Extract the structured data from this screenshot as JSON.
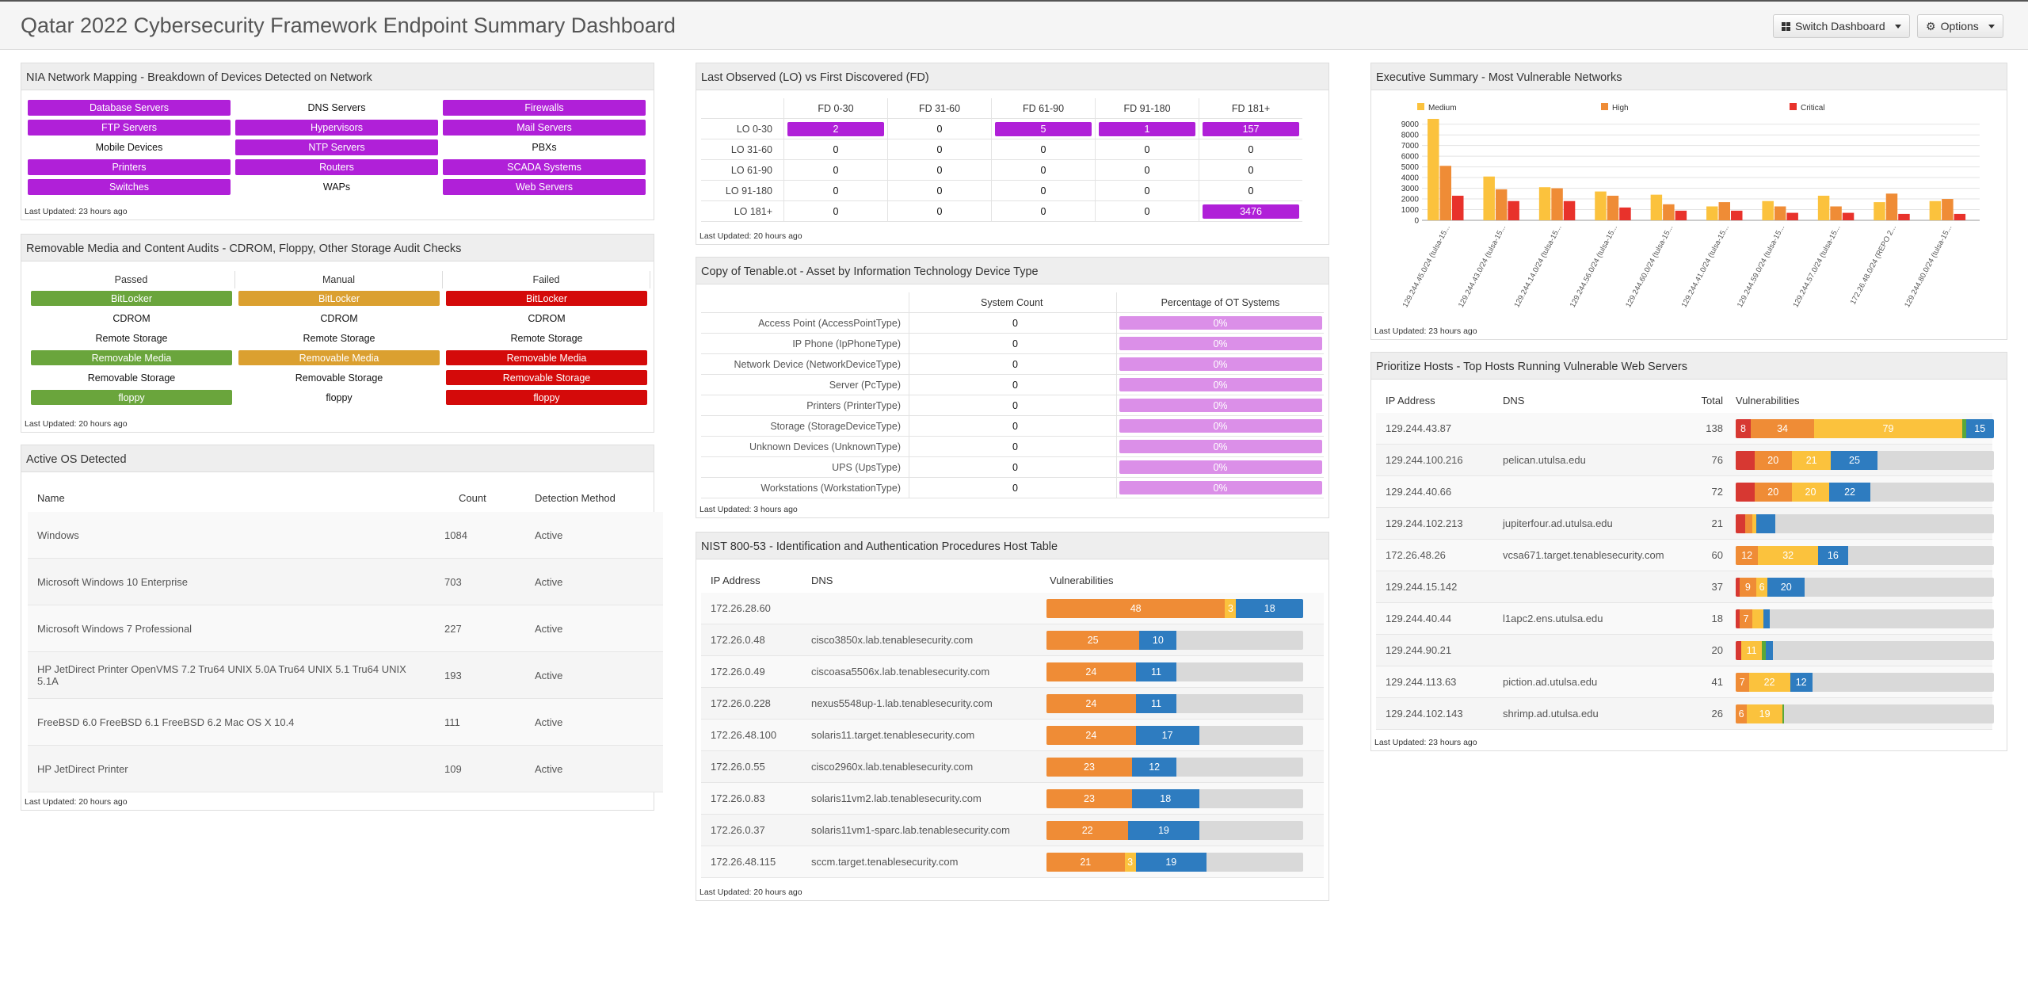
{
  "header": {
    "title": "Qatar 2022 Cybersecurity Framework Endpoint Summary Dashboard",
    "switch_label": "Switch Dashboard",
    "options_label": "Options"
  },
  "nia": {
    "title": "NIA Network Mapping - Breakdown of Devices Detected on Network",
    "cells": [
      {
        "label": "Database Servers",
        "style": "purple"
      },
      {
        "label": "DNS Servers",
        "style": "plain"
      },
      {
        "label": "Firewalls",
        "style": "purple"
      },
      {
        "label": "FTP Servers",
        "style": "purple"
      },
      {
        "label": "Hypervisors",
        "style": "purple"
      },
      {
        "label": "Mail Servers",
        "style": "purple"
      },
      {
        "label": "Mobile Devices",
        "style": "plain"
      },
      {
        "label": "NTP Servers",
        "style": "purple"
      },
      {
        "label": "PBXs",
        "style": "plain"
      },
      {
        "label": "Printers",
        "style": "purple"
      },
      {
        "label": "Routers",
        "style": "purple"
      },
      {
        "label": "SCADA Systems",
        "style": "purple"
      },
      {
        "label": "Switches",
        "style": "purple"
      },
      {
        "label": "WAPs",
        "style": "plain"
      },
      {
        "label": "Web Servers",
        "style": "purple"
      }
    ],
    "updated": "Last Updated: 23 hours ago"
  },
  "removable": {
    "title": "Removable Media and Content Audits - CDROM, Floppy, Other Storage Audit Checks",
    "headers": [
      "Passed",
      "Manual",
      "Failed"
    ],
    "rows": [
      [
        {
          "label": "BitLocker",
          "style": "green"
        },
        {
          "label": "BitLocker",
          "style": "orange"
        },
        {
          "label": "BitLocker",
          "style": "red"
        }
      ],
      [
        {
          "label": "CDROM",
          "style": "plain"
        },
        {
          "label": "CDROM",
          "style": "plain"
        },
        {
          "label": "CDROM",
          "style": "plain"
        }
      ],
      [
        {
          "label": "Remote Storage",
          "style": "plain"
        },
        {
          "label": "Remote Storage",
          "style": "plain"
        },
        {
          "label": "Remote Storage",
          "style": "plain"
        }
      ],
      [
        {
          "label": "Removable Media",
          "style": "green"
        },
        {
          "label": "Removable Media",
          "style": "orange"
        },
        {
          "label": "Removable Media",
          "style": "red"
        }
      ],
      [
        {
          "label": "Removable Storage",
          "style": "plain"
        },
        {
          "label": "Removable Storage",
          "style": "plain"
        },
        {
          "label": "Removable Storage",
          "style": "red"
        }
      ],
      [
        {
          "label": "floppy",
          "style": "green"
        },
        {
          "label": "floppy",
          "style": "plain"
        },
        {
          "label": "floppy",
          "style": "red"
        }
      ]
    ],
    "updated": "Last Updated: 20 hours ago"
  },
  "os": {
    "title": "Active OS Detected",
    "headers": {
      "name": "Name",
      "count": "Count",
      "method": "Detection Method"
    },
    "rows": [
      {
        "name": "Windows",
        "count": "1084",
        "method": "Active"
      },
      {
        "name": "Microsoft Windows 10 Enterprise",
        "count": "703",
        "method": "Active"
      },
      {
        "name": "Microsoft Windows 7 Professional",
        "count": "227",
        "method": "Active"
      },
      {
        "name": "HP JetDirect Printer OpenVMS 7.2 Tru64 UNIX 5.0A Tru64 UNIX 5.1 Tru64 UNIX 5.1A",
        "count": "193",
        "method": "Active"
      },
      {
        "name": "FreeBSD 6.0 FreeBSD 6.1 FreeBSD 6.2 Mac OS X 10.4",
        "count": "111",
        "method": "Active"
      },
      {
        "name": "HP JetDirect Printer",
        "count": "109",
        "method": "Active"
      }
    ],
    "updated": "Last Updated: 20 hours ago"
  },
  "lofd": {
    "title": "Last Observed (LO) vs First Discovered (FD)",
    "columns": [
      "FD 0-30",
      "FD 31-60",
      "FD 61-90",
      "FD 91-180",
      "FD 181+"
    ],
    "rows": [
      {
        "label": "LO 0-30",
        "cells": [
          {
            "v": "2",
            "hl": true
          },
          {
            "v": "0",
            "hl": false
          },
          {
            "v": "5",
            "hl": true
          },
          {
            "v": "1",
            "hl": true
          },
          {
            "v": "157",
            "hl": true
          }
        ]
      },
      {
        "label": "LO 31-60",
        "cells": [
          {
            "v": "0",
            "hl": false
          },
          {
            "v": "0",
            "hl": false
          },
          {
            "v": "0",
            "hl": false
          },
          {
            "v": "0",
            "hl": false
          },
          {
            "v": "0",
            "hl": false
          }
        ]
      },
      {
        "label": "LO 61-90",
        "cells": [
          {
            "v": "0",
            "hl": false
          },
          {
            "v": "0",
            "hl": false
          },
          {
            "v": "0",
            "hl": false
          },
          {
            "v": "0",
            "hl": false
          },
          {
            "v": "0",
            "hl": false
          }
        ]
      },
      {
        "label": "LO 91-180",
        "cells": [
          {
            "v": "0",
            "hl": false
          },
          {
            "v": "0",
            "hl": false
          },
          {
            "v": "0",
            "hl": false
          },
          {
            "v": "0",
            "hl": false
          },
          {
            "v": "0",
            "hl": false
          }
        ]
      },
      {
        "label": "LO 181+",
        "cells": [
          {
            "v": "0",
            "hl": false
          },
          {
            "v": "0",
            "hl": false
          },
          {
            "v": "0",
            "hl": false
          },
          {
            "v": "0",
            "hl": false
          },
          {
            "v": "3476",
            "hl": true
          }
        ]
      }
    ],
    "updated": "Last Updated: 20 hours ago"
  },
  "ot": {
    "title": "Copy of Tenable.ot - Asset by Information Technology Device Type",
    "headers": {
      "count": "System Count",
      "pct": "Percentage of OT Systems"
    },
    "rows": [
      {
        "label": "Access Point (AccessPointType)",
        "count": "0",
        "pct": "0%"
      },
      {
        "label": "IP Phone (IpPhoneType)",
        "count": "0",
        "pct": "0%"
      },
      {
        "label": "Network Device (NetworkDeviceType)",
        "count": "0",
        "pct": "0%"
      },
      {
        "label": "Server (PcType)",
        "count": "0",
        "pct": "0%"
      },
      {
        "label": "Printers (PrinterType)",
        "count": "0",
        "pct": "0%"
      },
      {
        "label": "Storage (StorageDeviceType)",
        "count": "0",
        "pct": "0%"
      },
      {
        "label": "Unknown Devices (UnknownType)",
        "count": "0",
        "pct": "0%"
      },
      {
        "label": "UPS (UpsType)",
        "count": "0",
        "pct": "0%"
      },
      {
        "label": "Workstations (WorkstationType)",
        "count": "0",
        "pct": "0%"
      }
    ],
    "updated": "Last Updated: 3 hours ago"
  },
  "nist": {
    "title": "NIST 800-53 - Identification and Authentication Procedures Host Table",
    "headers": {
      "ip": "IP Address",
      "dns": "DNS",
      "vulns": "Vulnerabilities"
    },
    "bar_max": 69,
    "rows": [
      {
        "ip": "172.26.28.60",
        "dns": "",
        "segs": [
          {
            "c": "high",
            "v": 48,
            "t": "48"
          },
          {
            "c": "med",
            "v": 3,
            "t": "3"
          },
          {
            "c": "low",
            "v": 18,
            "t": "18"
          }
        ]
      },
      {
        "ip": "172.26.0.48",
        "dns": "cisco3850x.lab.tenablesecurity.com",
        "segs": [
          {
            "c": "high",
            "v": 25,
            "t": "25"
          },
          {
            "c": "low",
            "v": 10,
            "t": "10"
          }
        ]
      },
      {
        "ip": "172.26.0.49",
        "dns": "ciscoasa5506x.lab.tenablesecurity.com",
        "segs": [
          {
            "c": "high",
            "v": 24,
            "t": "24"
          },
          {
            "c": "low",
            "v": 11,
            "t": "11"
          }
        ]
      },
      {
        "ip": "172.26.0.228",
        "dns": "nexus5548up-1.lab.tenablesecurity.com",
        "segs": [
          {
            "c": "high",
            "v": 24,
            "t": "24"
          },
          {
            "c": "low",
            "v": 11,
            "t": "11"
          }
        ]
      },
      {
        "ip": "172.26.48.100",
        "dns": "solaris11.target.tenablesecurity.com",
        "segs": [
          {
            "c": "high",
            "v": 24,
            "t": "24"
          },
          {
            "c": "low",
            "v": 17,
            "t": "17"
          }
        ]
      },
      {
        "ip": "172.26.0.55",
        "dns": "cisco2960x.lab.tenablesecurity.com",
        "segs": [
          {
            "c": "high",
            "v": 23,
            "t": "23"
          },
          {
            "c": "low",
            "v": 12,
            "t": "12"
          }
        ]
      },
      {
        "ip": "172.26.0.83",
        "dns": "solaris11vm2.lab.tenablesecurity.com",
        "segs": [
          {
            "c": "high",
            "v": 23,
            "t": "23"
          },
          {
            "c": "low",
            "v": 18,
            "t": "18"
          }
        ]
      },
      {
        "ip": "172.26.0.37",
        "dns": "solaris11vm1-sparc.lab.tenablesecurity.com",
        "segs": [
          {
            "c": "high",
            "v": 22,
            "t": "22"
          },
          {
            "c": "low",
            "v": 19,
            "t": "19"
          }
        ]
      },
      {
        "ip": "172.26.48.115",
        "dns": "sccm.target.tenablesecurity.com",
        "segs": [
          {
            "c": "high",
            "v": 21,
            "t": "21"
          },
          {
            "c": "med",
            "v": 3,
            "t": "3"
          },
          {
            "c": "low",
            "v": 19,
            "t": "19"
          }
        ]
      }
    ],
    "updated": "Last Updated: 20 hours ago"
  },
  "exec": {
    "title": "Executive Summary - Most Vulnerable Networks",
    "updated": "Last Updated: 23 hours ago"
  },
  "chart_data": {
    "type": "bar",
    "categories": [
      "129.244.45.0/24 (tulsa-15...",
      "129.244.43.0/24 (tulsa-15...",
      "129.244.14.0/24 (tulsa-15...",
      "129.244.56.0/24 (tulsa-15...",
      "129.244.60.0/24 (tulsa-15...",
      "129.244.41.0/24 (tulsa-15...",
      "129.244.59.0/24 (tulsa-15...",
      "129.244.57.0/24 (tulsa-15...",
      "172.26.48.0/24 (REPO 2...",
      "129.244.80.0/24 (tulsa-15..."
    ],
    "series": [
      {
        "name": "Medium",
        "color": "#fbc23d",
        "values": [
          9500,
          4100,
          3100,
          2700,
          2400,
          1300,
          1800,
          2300,
          1700,
          1800
        ]
      },
      {
        "name": "High",
        "color": "#ef8c36",
        "values": [
          5100,
          2900,
          3000,
          2300,
          1500,
          1700,
          1300,
          1300,
          2500,
          2000
        ]
      },
      {
        "name": "Critical",
        "color": "#e8322b",
        "values": [
          2300,
          1800,
          1800,
          1200,
          900,
          900,
          700,
          700,
          600,
          600
        ]
      }
    ],
    "yticks": [
      0,
      1000,
      2000,
      3000,
      4000,
      5000,
      6000,
      7000,
      8000,
      9000
    ],
    "ylim": [
      0,
      9500
    ],
    "legend": "top"
  },
  "prio": {
    "title": "Prioritize Hosts - Top Hosts Running Vulnerable Web Servers",
    "headers": {
      "ip": "IP Address",
      "dns": "DNS",
      "total": "Total",
      "vulns": "Vulnerabilities"
    },
    "bar_max": 138,
    "rows": [
      {
        "ip": "129.244.43.87",
        "dns": "",
        "total": "138",
        "segs": [
          {
            "c": "crit",
            "v": 8,
            "t": "8"
          },
          {
            "c": "high",
            "v": 34,
            "t": "34"
          },
          {
            "c": "med",
            "v": 79,
            "t": "79"
          },
          {
            "c": "green",
            "v": 2,
            "t": ""
          },
          {
            "c": "low",
            "v": 15,
            "t": "15"
          }
        ]
      },
      {
        "ip": "129.244.100.216",
        "dns": "pelican.utulsa.edu",
        "total": "76",
        "segs": [
          {
            "c": "crit",
            "v": 10,
            "t": ""
          },
          {
            "c": "high",
            "v": 20,
            "t": "20"
          },
          {
            "c": "med",
            "v": 21,
            "t": "21"
          },
          {
            "c": "low",
            "v": 25,
            "t": "25"
          }
        ]
      },
      {
        "ip": "129.244.40.66",
        "dns": "",
        "total": "72",
        "segs": [
          {
            "c": "crit",
            "v": 10,
            "t": ""
          },
          {
            "c": "high",
            "v": 20,
            "t": "20"
          },
          {
            "c": "med",
            "v": 20,
            "t": "20"
          },
          {
            "c": "low",
            "v": 22,
            "t": "22"
          }
        ]
      },
      {
        "ip": "129.244.102.213",
        "dns": "jupiterfour.ad.utulsa.edu",
        "total": "21",
        "segs": [
          {
            "c": "crit",
            "v": 5,
            "t": ""
          },
          {
            "c": "high",
            "v": 4,
            "t": ""
          },
          {
            "c": "med",
            "v": 2,
            "t": ""
          },
          {
            "c": "low",
            "v": 10,
            "t": ""
          }
        ]
      },
      {
        "ip": "172.26.48.26",
        "dns": "vcsa671.target.tenablesecurity.com",
        "total": "60",
        "segs": [
          {
            "c": "high",
            "v": 12,
            "t": "12"
          },
          {
            "c": "med",
            "v": 32,
            "t": "32"
          },
          {
            "c": "low",
            "v": 16,
            "t": "16"
          }
        ]
      },
      {
        "ip": "129.244.15.142",
        "dns": "",
        "total": "37",
        "segs": [
          {
            "c": "crit",
            "v": 2,
            "t": ""
          },
          {
            "c": "high",
            "v": 9,
            "t": "9"
          },
          {
            "c": "med",
            "v": 6,
            "t": "6"
          },
          {
            "c": "low",
            "v": 20,
            "t": "20"
          }
        ]
      },
      {
        "ip": "129.244.40.44",
        "dns": "l1apc2.ens.utulsa.edu",
        "total": "18",
        "segs": [
          {
            "c": "crit",
            "v": 2,
            "t": ""
          },
          {
            "c": "high",
            "v": 7,
            "t": "7"
          },
          {
            "c": "med",
            "v": 6,
            "t": ""
          },
          {
            "c": "low",
            "v": 3,
            "t": ""
          }
        ]
      },
      {
        "ip": "129.244.90.21",
        "dns": "",
        "total": "20",
        "segs": [
          {
            "c": "crit",
            "v": 3,
            "t": ""
          },
          {
            "c": "med",
            "v": 11,
            "t": "11"
          },
          {
            "c": "green",
            "v": 2,
            "t": ""
          },
          {
            "c": "low",
            "v": 4,
            "t": ""
          }
        ]
      },
      {
        "ip": "129.244.113.63",
        "dns": "piction.ad.utulsa.edu",
        "total": "41",
        "segs": [
          {
            "c": "high",
            "v": 7,
            "t": "7"
          },
          {
            "c": "med",
            "v": 22,
            "t": "22"
          },
          {
            "c": "low",
            "v": 12,
            "t": "12"
          }
        ]
      },
      {
        "ip": "129.244.102.143",
        "dns": "shrimp.ad.utulsa.edu",
        "total": "26",
        "segs": [
          {
            "c": "high",
            "v": 6,
            "t": "6"
          },
          {
            "c": "med",
            "v": 19,
            "t": "19"
          },
          {
            "c": "green",
            "v": 1,
            "t": ""
          }
        ]
      }
    ],
    "updated": "Last Updated: 23 hours ago"
  }
}
